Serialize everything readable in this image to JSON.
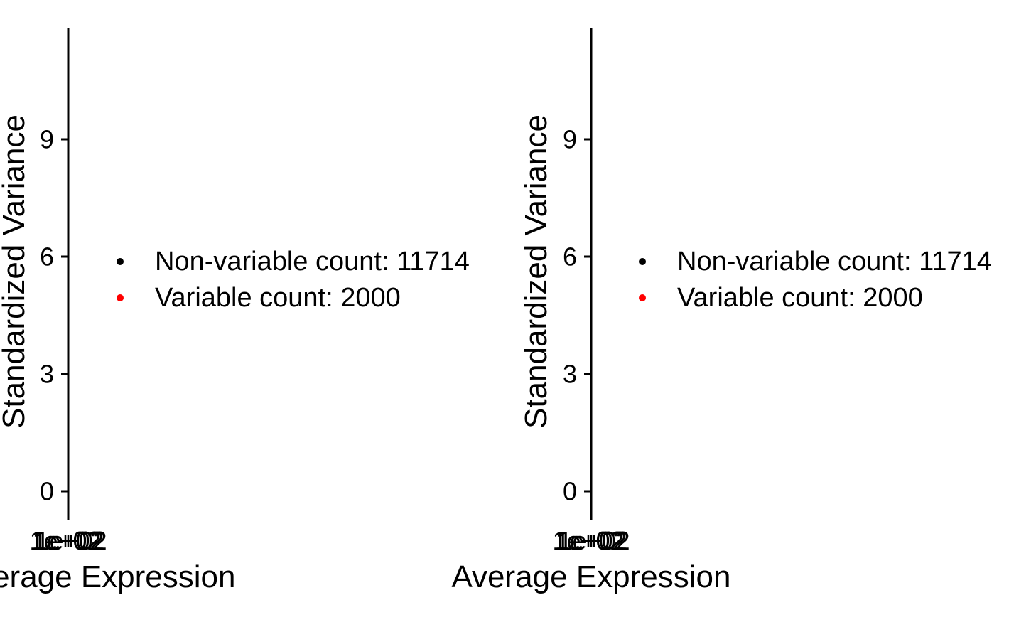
{
  "chart_data": [
    {
      "type": "scatter",
      "title": "",
      "xlabel": "Average Expression",
      "ylabel": "Standardized Variance",
      "x_scale": "log10",
      "x_ticks": [
        "1e+02",
        "1e+02",
        "1e+02"
      ],
      "y_ticks": [
        0,
        3,
        6,
        9
      ],
      "ylim": [
        -0.5,
        11.8
      ],
      "grid": false,
      "legend_position": "center",
      "series": [
        {
          "name": "Non-variable count: 11714",
          "color": "#000000",
          "points": []
        },
        {
          "name": "Variable count: 2000",
          "color": "#ff0000",
          "points": []
        }
      ]
    },
    {
      "type": "scatter",
      "title": "",
      "xlabel": "Average Expression",
      "ylabel": "Standardized Variance",
      "x_scale": "log10",
      "x_ticks": [
        "1e+02",
        "1e+02",
        "1e+02"
      ],
      "y_ticks": [
        0,
        3,
        6,
        9
      ],
      "ylim": [
        -0.5,
        11.8
      ],
      "grid": false,
      "legend_position": "center",
      "series": [
        {
          "name": "Non-variable count: 11714",
          "color": "#000000",
          "points": []
        },
        {
          "name": "Variable count: 2000",
          "color": "#ff0000",
          "points": []
        }
      ]
    }
  ]
}
